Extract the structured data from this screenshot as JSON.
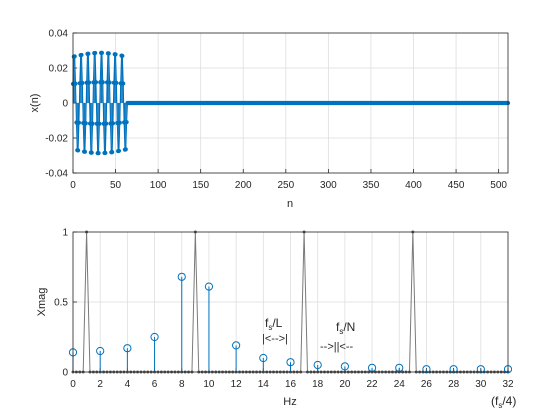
{
  "chart_data": [
    {
      "type": "stem",
      "title": "",
      "xlabel": "n",
      "ylabel": "x(n)",
      "xlim": [
        0,
        511
      ],
      "ylim": [
        -0.04,
        0.04
      ],
      "xticks": [
        0,
        50,
        100,
        150,
        200,
        250,
        300,
        350,
        400,
        450,
        500
      ],
      "yticks": [
        -0.04,
        -0.02,
        0,
        0.02,
        0.04
      ],
      "ytick_labels": [
        "-0.04",
        "-0.02",
        "0",
        "0.02",
        "0.04"
      ],
      "grid": true,
      "series_color": "#0072BD",
      "signal": {
        "nonzero_length": 64,
        "total_length": 512,
        "period_samples": 8,
        "peak_amplitude": 0.031,
        "note_values": "samples 0-63 follow a windowed sinusoid with 8 cycles; samples 64-511 are 0"
      }
    },
    {
      "type": "line+stem",
      "title": "",
      "xlabel": "Hz",
      "ylabel": "Xmag",
      "xlim": [
        0,
        32
      ],
      "ylim": [
        0,
        1
      ],
      "xticks": [
        0,
        2,
        4,
        6,
        8,
        10,
        12,
        14,
        16,
        18,
        20,
        22,
        24,
        26,
        28,
        30,
        32
      ],
      "yticks": [
        0,
        0.5,
        1
      ],
      "ytick_labels": [
        "0",
        "0.5",
        "1"
      ],
      "grid": true,
      "stem_color": "#0072BD",
      "curve_color": "#7a7a7a",
      "stems": {
        "x": [
          0,
          2,
          4,
          6,
          8,
          10,
          12,
          14,
          16,
          18,
          20,
          22,
          24,
          26,
          28,
          30,
          32
        ],
        "y": [
          0.14,
          0.15,
          0.17,
          0.25,
          0.68,
          0.61,
          0.19,
          0.1,
          0.07,
          0.05,
          0.04,
          0.03,
          0.03,
          0.02,
          0.02,
          0.02,
          0.02
        ]
      },
      "curve": {
        "x_step": 0.25,
        "peak_x": 9,
        "note_values": "Dirichlet kernel magnitude |sin(8πΔ)/(64 sin(πΔ/8))|, Δ = f − 9 Hz, sampled every 0.25 Hz"
      },
      "annotations": [
        {
          "id": "fsL",
          "line1_main": "f",
          "line1_sub": "s",
          "line1_rest": "/L",
          "line2": "|<-->|"
        },
        {
          "id": "fsN",
          "line1_main": "f",
          "line1_sub": "s",
          "line1_rest": "/N",
          "line2": "-->||<--"
        },
        {
          "id": "fs4",
          "main_pre": "(f",
          "sub": "s",
          "main_post": "/4)"
        }
      ]
    }
  ]
}
